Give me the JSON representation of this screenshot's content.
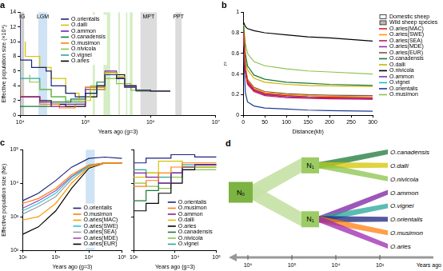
{
  "chart_data": [
    {
      "title": "a",
      "type": "line",
      "log": "x",
      "grid": false,
      "line_style": "steps",
      "legend": "upper center",
      "xlabel": "Years ago (g=3)",
      "ylabel": "Effective population size (×10⁴)",
      "xlim": [
        10000,
        10000000
      ],
      "xticks": [
        {
          "value": 10000,
          "label": "10⁴"
        },
        {
          "value": 100000,
          "label": "10⁵"
        },
        {
          "value": 1000000,
          "label": "10⁶"
        },
        {
          "value": 10000000,
          "label": "10⁷"
        }
      ],
      "ylim": [
        0,
        14
      ],
      "yticks": [
        0,
        2,
        4,
        6,
        8,
        10,
        12,
        14
      ],
      "shaded_regions": [
        {
          "x": [
            10000,
            11500
          ],
          "label": "IG",
          "color": "#cfcfcf"
        },
        {
          "x": [
            19000,
            26000
          ],
          "label": "LGM",
          "color": "#cfe3f5"
        },
        {
          "x": [
            130000,
            140000
          ],
          "color": "#d4edc4"
        },
        {
          "x": [
            190000,
            240000
          ],
          "color": "#d4edc4"
        },
        {
          "x": [
            320000,
            340000
          ],
          "color": "#d4edc4"
        },
        {
          "x": [
            420000,
            440000
          ],
          "color": "#d4edc4"
        },
        {
          "x": [
            480000,
            530000
          ],
          "color": "#d4edc4"
        },
        {
          "x": [
            700000,
            1250000
          ],
          "label": "MPT",
          "color": "#dcdcdc"
        },
        {
          "x": [
            2400000,
            3000000
          ],
          "label": "PPT",
          "color": "#dcdcdc"
        }
      ],
      "series": [
        {
          "name": "O.orientalis",
          "color": "#1a237e",
          "x": [
            10000,
            15000,
            25000,
            30000,
            50000,
            70000,
            100000,
            150000,
            200000,
            300000,
            400000,
            600000,
            1000000,
            2000000
          ],
          "values": [
            13,
            7.5,
            6.5,
            6.0,
            4.0,
            3.0,
            2.5,
            3.0,
            4.0,
            5.5,
            5.0,
            4.0,
            3.4,
            3.3
          ]
        },
        {
          "name": "O.dalli",
          "color": "#d4c400",
          "x": [
            12000,
            20000,
            30000,
            50000,
            80000,
            120000,
            200000,
            300000,
            400000,
            600000,
            1000000,
            2000000
          ],
          "values": [
            10,
            8,
            6.5,
            5.0,
            3.0,
            2.0,
            3.5,
            5.8,
            5.2,
            4.0,
            3.4,
            3.3
          ]
        },
        {
          "name": "O.ammon",
          "color": "#7b1fa2",
          "x": [
            10000,
            20000,
            30000,
            50000,
            100000,
            200000,
            300000,
            400000,
            600000,
            1000000,
            2000000
          ],
          "values": [
            2,
            2.5,
            1.8,
            1.2,
            1.5,
            3.5,
            6.0,
            5.0,
            3.8,
            3.4,
            3.3
          ]
        },
        {
          "name": "O.canadensis",
          "color": "#1b7837",
          "x": [
            10000,
            30000,
            60000,
            100000,
            150000,
            200000,
            300000,
            400000,
            600000,
            1000000,
            2000000
          ],
          "values": [
            1.0,
            1.2,
            1.8,
            2.2,
            3.0,
            4.5,
            5.5,
            5.0,
            3.8,
            3.3,
            3.3
          ]
        },
        {
          "name": "O.musimon",
          "color": "#ff7f0e",
          "x": [
            10000,
            20000,
            40000,
            70000,
            100000,
            200000,
            300000,
            400000,
            600000,
            1000000,
            2000000
          ],
          "values": [
            3.5,
            2.5,
            1.5,
            1.0,
            1.5,
            3.8,
            5.8,
            5.2,
            4.0,
            3.4,
            3.3
          ]
        },
        {
          "name": "O.nivicola",
          "color": "#8bc34a",
          "x": [
            14000,
            20000,
            30000,
            50000,
            80000,
            120000,
            200000,
            300000,
            500000,
            1000000,
            2000000
          ],
          "values": [
            5.5,
            4.5,
            3.5,
            2.5,
            2.0,
            2.5,
            4.0,
            5.0,
            4.3,
            3.4,
            3.3
          ]
        },
        {
          "name": "O.vignei",
          "color": "#26a69a",
          "x": [
            10000,
            20000,
            30000,
            50000,
            100000,
            200000,
            300000,
            400000,
            600000,
            1000000,
            2000000
          ],
          "values": [
            6.5,
            5.0,
            3.5,
            2.5,
            1.8,
            3.8,
            5.8,
            5.2,
            4.0,
            3.4,
            3.3
          ]
        },
        {
          "name": "O.aries",
          "color": "#000000",
          "x": [
            10000,
            20000,
            30000,
            50000,
            100000,
            150000,
            200000,
            300000,
            400000,
            600000,
            1000000,
            2000000
          ],
          "values": [
            3.5,
            2.5,
            2.0,
            1.5,
            1.2,
            2.5,
            4.0,
            5.8,
            5.5,
            4.0,
            3.4,
            3.3
          ]
        }
      ]
    },
    {
      "title": "b",
      "type": "line",
      "grid": false,
      "line_style": "solid",
      "legend": "right",
      "annotations": [
        "Domestic sheep",
        "Wild sheep species"
      ],
      "xlabel": "Distance(kb)",
      "ylabel": "r²",
      "xlim": [
        0,
        300
      ],
      "xticks": [
        0,
        50,
        100,
        150,
        200,
        250,
        300
      ],
      "ylim": [
        0,
        1
      ],
      "yticks": [
        0,
        0.2,
        0.4,
        0.6,
        0.8,
        1
      ],
      "x": [
        1,
        5,
        10,
        25,
        50,
        100,
        150,
        200,
        300
      ],
      "series": [
        {
          "name": "O.aries(MAC)",
          "color": "#e41a1c",
          "values": [
            0.8,
            0.45,
            0.33,
            0.25,
            0.21,
            0.19,
            0.18,
            0.175,
            0.17
          ]
        },
        {
          "name": "O.aries(SWE)",
          "color": "#ff9900",
          "values": [
            0.8,
            0.46,
            0.34,
            0.26,
            0.22,
            0.2,
            0.19,
            0.185,
            0.18
          ]
        },
        {
          "name": "O.aries(SEA)",
          "color": "#c2185b",
          "values": [
            0.78,
            0.42,
            0.3,
            0.23,
            0.19,
            0.17,
            0.165,
            0.16,
            0.155
          ]
        },
        {
          "name": "O.aries(MDE)",
          "color": "#9c27b0",
          "values": [
            0.79,
            0.44,
            0.32,
            0.24,
            0.2,
            0.18,
            0.17,
            0.165,
            0.16
          ]
        },
        {
          "name": "O.aries(EUR)",
          "color": "#795548",
          "values": [
            0.81,
            0.47,
            0.35,
            0.27,
            0.23,
            0.21,
            0.2,
            0.195,
            0.19
          ]
        },
        {
          "name": "O.canadensis",
          "color": "#1b7837",
          "values": [
            0.86,
            0.6,
            0.48,
            0.39,
            0.35,
            0.32,
            0.31,
            0.3,
            0.29
          ]
        },
        {
          "name": "O.dalli",
          "color": "#c9b400",
          "values": [
            0.84,
            0.55,
            0.44,
            0.36,
            0.32,
            0.3,
            0.29,
            0.285,
            0.28
          ]
        },
        {
          "name": "O.nivicola",
          "color": "#000000",
          "values": [
            0.9,
            0.86,
            0.84,
            0.82,
            0.8,
            0.78,
            0.76,
            0.75,
            0.72
          ]
        },
        {
          "name": "O.ammon",
          "color": "#6a3d9a",
          "values": [
            0.78,
            0.43,
            0.31,
            0.24,
            0.2,
            0.18,
            0.17,
            0.165,
            0.16
          ]
        },
        {
          "name": "O.vignei",
          "color": "#17becf",
          "values": [
            0.8,
            0.45,
            0.33,
            0.25,
            0.21,
            0.19,
            0.18,
            0.175,
            0.17
          ]
        },
        {
          "name": "O.orientalis",
          "color": "#1f3a93",
          "values": [
            0.6,
            0.22,
            0.13,
            0.09,
            0.07,
            0.06,
            0.05,
            0.045,
            0.04
          ]
        },
        {
          "name": "O.musimon",
          "color": "#8bc34a",
          "values": [
            0.88,
            0.7,
            0.6,
            0.52,
            0.48,
            0.45,
            0.43,
            0.42,
            0.4
          ]
        }
      ]
    },
    {
      "title": "c",
      "type": "line",
      "log": true,
      "grid": false,
      "line_style": "solid",
      "legend": "lower right",
      "xlabel": "Years ago (g=3)",
      "ylabel": "Effective population size (Ne)",
      "xlim": [
        100,
        100000
      ],
      "xticks": [
        {
          "value": 100,
          "label": "10²"
        },
        {
          "value": 1000,
          "label": "10³"
        },
        {
          "value": 10000,
          "label": "10⁴"
        },
        {
          "value": 100000,
          "label": "10⁵"
        }
      ],
      "ylim": [
        100,
        100000
      ],
      "yticks": [
        {
          "value": 100,
          "label": "10²"
        },
        {
          "value": 1000,
          "label": "10³"
        },
        {
          "value": 10000,
          "label": "10⁴"
        },
        {
          "value": 100000,
          "label": "10⁵"
        }
      ],
      "shaded_regions": [
        {
          "x": [
            8000,
            15000
          ],
          "color": "#cfe3f5"
        }
      ],
      "x": [
        100,
        300,
        1000,
        3000,
        10000,
        30000,
        100000
      ],
      "series": [
        {
          "name": "O.orientalis",
          "color": "#1a237e",
          "values": [
            3000,
            5000,
            12000,
            30000,
            55000,
            60000,
            55000
          ]
        },
        {
          "name": "O.musimon",
          "color": "#ff7f0e",
          "values": [
            2500,
            3500,
            7000,
            18000,
            35000,
            40000,
            40000
          ]
        },
        {
          "name": "O.aries(MAC)",
          "color": "#ff9800",
          "values": [
            800,
            1000,
            2500,
            10000,
            30000,
            40000,
            40000
          ]
        },
        {
          "name": "O.aries(SWE)",
          "color": "#26c6da",
          "values": [
            1500,
            2500,
            5000,
            15000,
            33000,
            40000,
            40000
          ]
        },
        {
          "name": "O.aries(SEA)",
          "color": "#9e9e9e",
          "values": [
            1200,
            2000,
            4000,
            13000,
            32000,
            40000,
            40000
          ]
        },
        {
          "name": "O.aries(MDE)",
          "color": "#ab47bc",
          "values": [
            1800,
            3000,
            6000,
            16000,
            34000,
            40000,
            40000
          ]
        },
        {
          "name": "O.aries(EUR)",
          "color": "#000000",
          "values": [
            300,
            500,
            1500,
            7000,
            28000,
            40000,
            40000
          ]
        }
      ]
    },
    {
      "type": "line",
      "log": true,
      "grid": false,
      "line_style": "steps",
      "legend": "lower right",
      "tick_labels": "x",
      "xlabel": "Years ago (g=3)",
      "xlim": [
        1000,
        100000
      ],
      "xticks": [
        {
          "value": 1000,
          "label": "10³"
        },
        {
          "value": 10000,
          "label": "10⁴"
        },
        {
          "value": 100000,
          "label": "10⁵"
        }
      ],
      "ylim": [
        100,
        100000
      ],
      "yticks": [
        100,
        1000,
        10000,
        100000
      ],
      "x": [
        1000,
        2000,
        4000,
        8000,
        15000,
        30000,
        60000,
        100000
      ],
      "series": [
        {
          "name": "O.orientalis",
          "color": "#1a237e",
          "values": [
            40000,
            40000,
            55000,
            55000,
            70000,
            70000,
            60000,
            60000
          ]
        },
        {
          "name": "O.musimon",
          "color": "#ff7f0e",
          "values": [
            8000,
            8000,
            12000,
            20000,
            30000,
            40000,
            40000,
            40000
          ]
        },
        {
          "name": "O.ammon",
          "color": "#7b1fa2",
          "values": [
            20000,
            20000,
            15000,
            10000,
            20000,
            30000,
            35000,
            35000
          ]
        },
        {
          "name": "O.dalli",
          "color": "#d4c400",
          "values": [
            15000,
            15000,
            20000,
            45000,
            45000,
            30000,
            30000,
            30000
          ]
        },
        {
          "name": "O.aries",
          "color": "#000000",
          "values": [
            1500,
            1500,
            2500,
            5000,
            10000,
            25000,
            35000,
            35000
          ]
        },
        {
          "name": "O.canadensis",
          "color": "#1b7837",
          "values": [
            3000,
            3000,
            6000,
            10000,
            20000,
            30000,
            30000,
            30000
          ]
        },
        {
          "name": "O.nivicola",
          "color": "#8bc34a",
          "values": [
            10000,
            10000,
            8000,
            7000,
            15000,
            25000,
            25000,
            25000
          ]
        },
        {
          "name": "O.vignei",
          "color": "#26a69a",
          "values": [
            25000,
            25000,
            20000,
            15000,
            20000,
            35000,
            35000,
            35000
          ]
        }
      ]
    }
  ],
  "diagram": {
    "title": "d",
    "root": {
      "label": "N₀"
    },
    "clades": [
      {
        "label": "N₁",
        "leaves": [
          {
            "name": "O.canadensis",
            "color": "#1b7837"
          },
          {
            "name": "O.dalli",
            "color": "#d4c400"
          },
          {
            "name": "O.nivicola",
            "color": "#8bc34a"
          }
        ]
      },
      {
        "label": "N₁",
        "leaves": [
          {
            "name": "O.ammon",
            "color": "#7b1fa2"
          },
          {
            "name": "O.vignei",
            "color": "#26a69a"
          },
          {
            "name": "O.orientalis",
            "color": "#1a237e"
          },
          {
            "name": "O.musimon",
            "color": "#ff7f0e"
          },
          {
            "name": "O.aries",
            "color": "#9c27b0"
          }
        ]
      }
    ],
    "axis": {
      "label": "Years ago",
      "ticks": [
        "10⁶",
        "10⁵",
        "10⁴",
        "10³"
      ]
    }
  }
}
